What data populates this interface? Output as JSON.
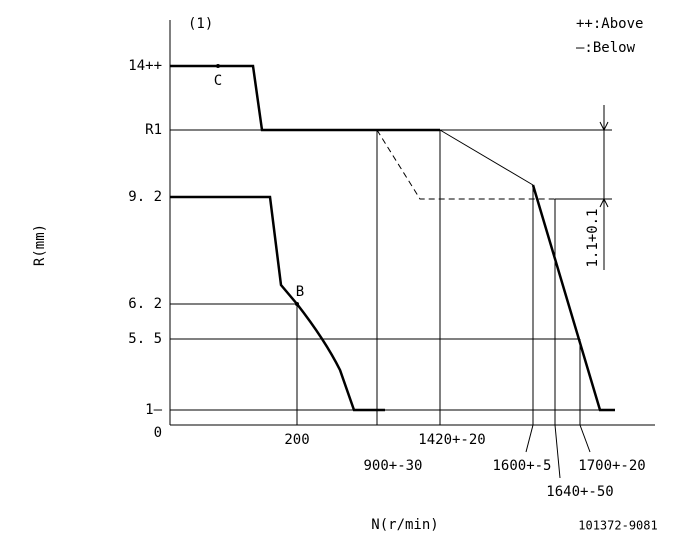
{
  "header": {
    "figure": "(1)",
    "legend_above": "++:Above",
    "legend_below": "—:Below"
  },
  "y_axis": {
    "title": "R(mm)",
    "labels": [
      "14++",
      "R1",
      "9. 2",
      "6. 2",
      "5. 5",
      "1—",
      "0"
    ]
  },
  "x_axis": {
    "title": "N(r/min)",
    "labels": [
      "200",
      "900+-30",
      "1420+-20",
      "1600+-5",
      "1640+-50",
      "1700+-20"
    ]
  },
  "points": {
    "c": "C",
    "b": "B"
  },
  "dimension": "1.1+0.1",
  "code": "101372-9081"
}
